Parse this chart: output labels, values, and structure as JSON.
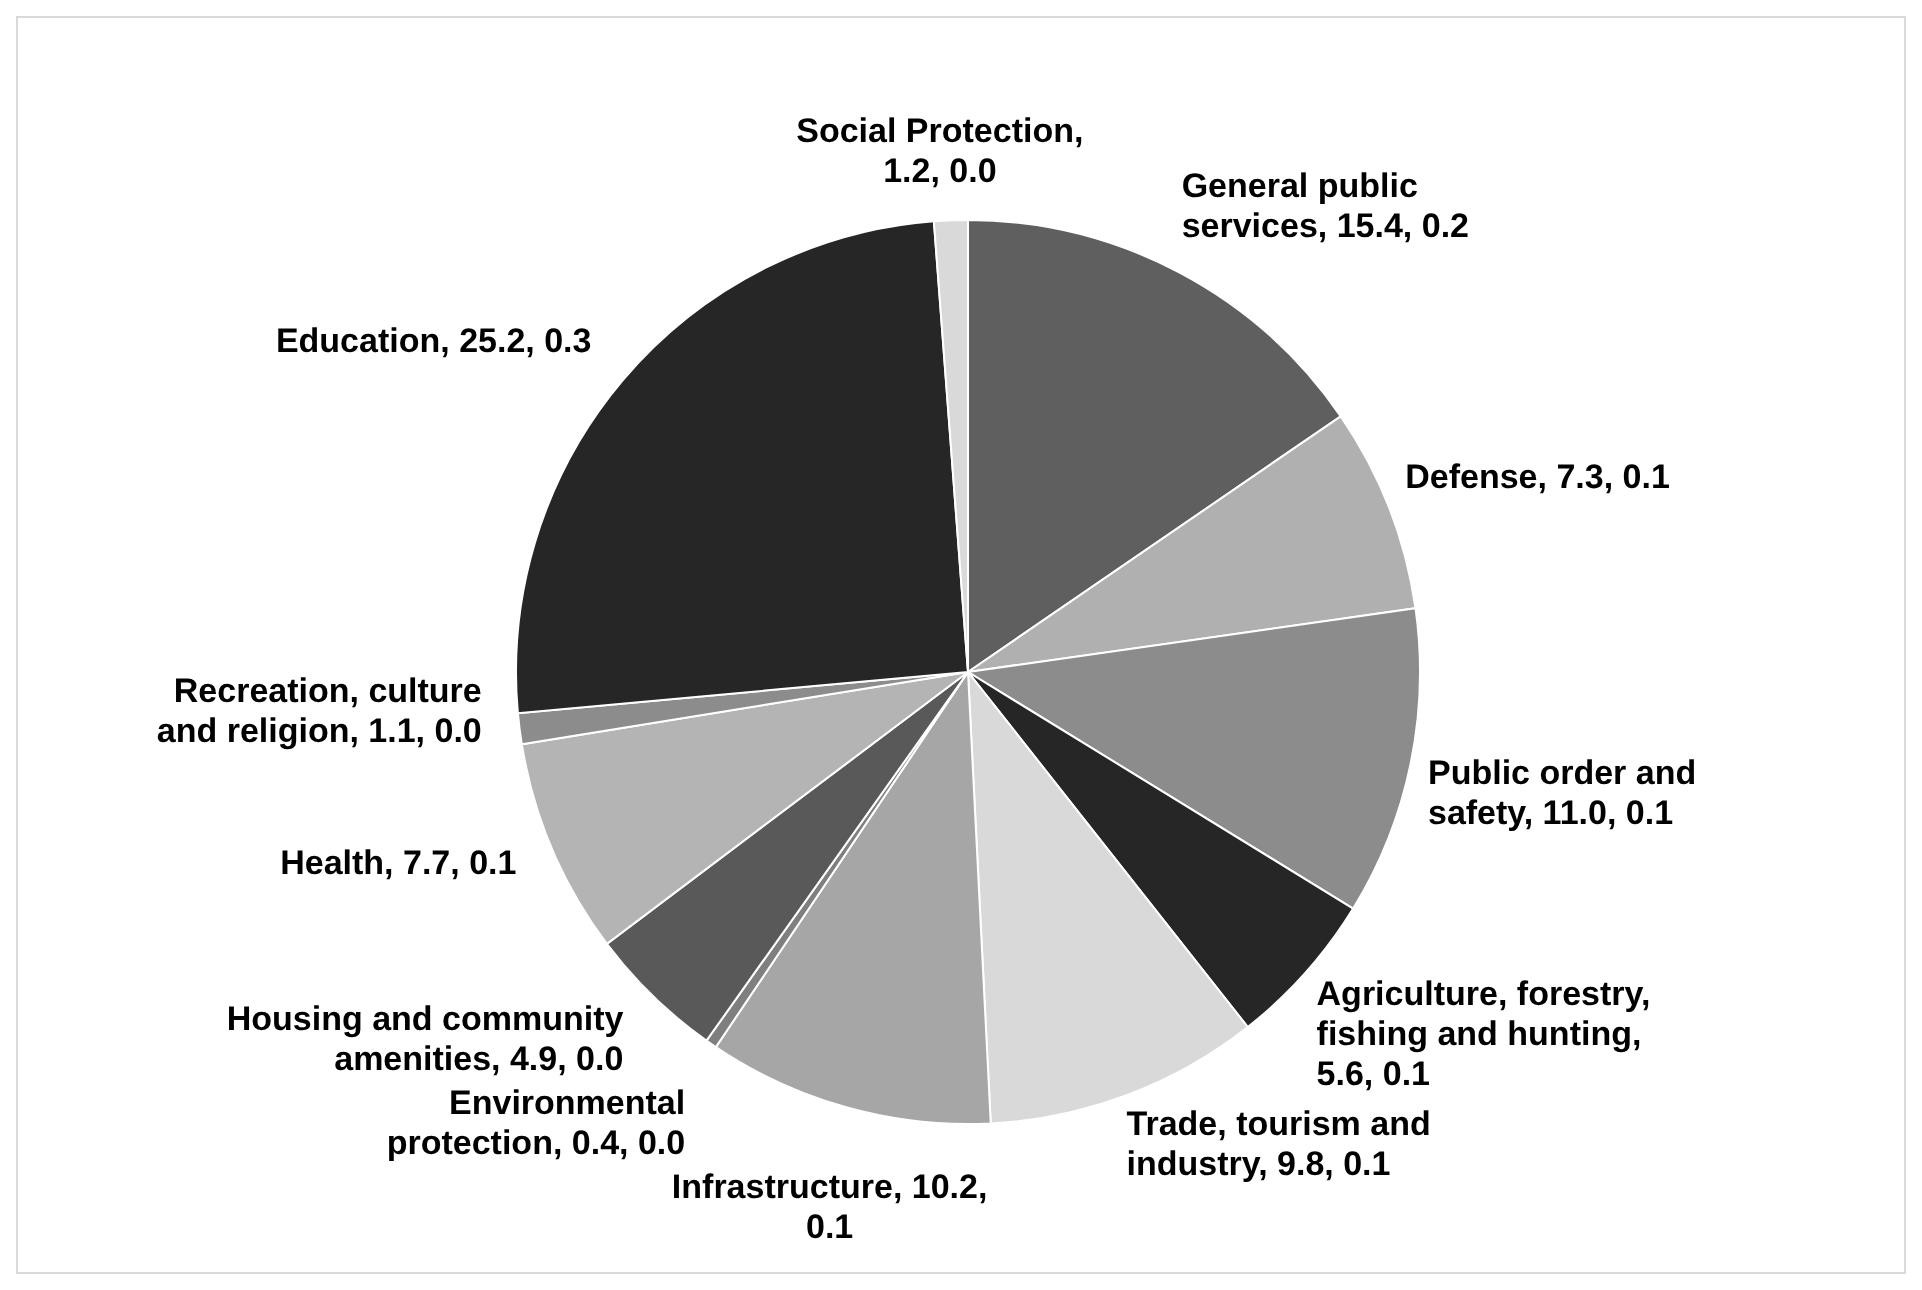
{
  "chart_data": {
    "type": "pie",
    "categories": [
      "General public services",
      "Defense",
      "Public order and safety",
      "Agriculture, forestry, fishing and hunting",
      "Trade, tourism and industry",
      "Infrastructure",
      "Environmental protection",
      "Housing and community amenities",
      "Health",
      "Recreation, culture and religion",
      "Education",
      "Social Protection"
    ],
    "values": [
      15.4,
      7.3,
      11.0,
      5.6,
      9.8,
      10.2,
      0.4,
      4.9,
      7.7,
      1.1,
      25.2,
      1.2
    ],
    "value_labels": [
      ", 15.4, 0.2",
      ", 7.3, 0.1",
      ", 11.0, 0.1",
      ", 5.6, 0.1",
      ", 9.8, 0.1",
      ", 10.2, 0.1",
      ", 0.4, 0.0",
      ", 4.9, 0.0",
      ", 7.7, 0.1",
      ", 1.1, 0.0",
      ", 25.2, 0.3",
      ", 1.2, 0.0"
    ],
    "colors": [
      "#5f5f5f",
      "#b0b0b0",
      "#8c8c8c",
      "#262626",
      "#d9d9d9",
      "#a6a6a6",
      "#7f7f7f",
      "#595959",
      "#b4b4b4",
      "#8c8c8c",
      "#262626",
      "#d9d9d9"
    ],
    "legend": false
  }
}
